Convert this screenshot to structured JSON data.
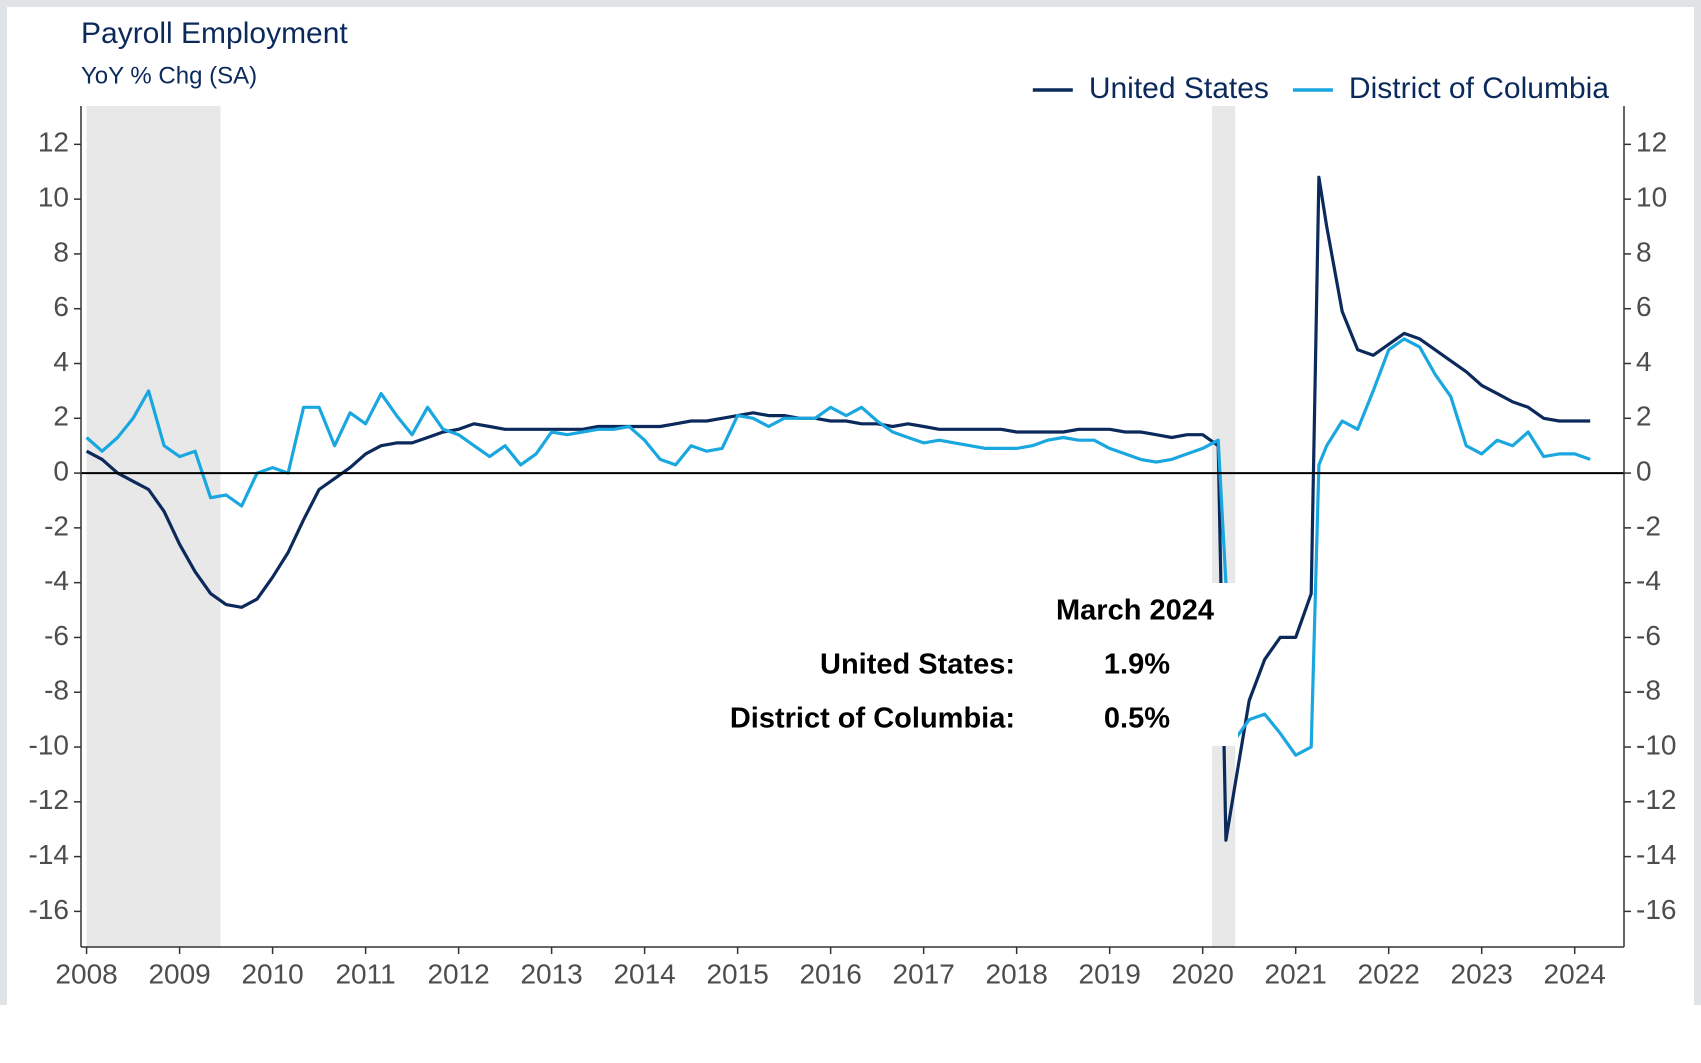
{
  "chart_data": {
    "type": "line",
    "title": "Payroll Employment",
    "subtitle": "YoY % Chg (SA)",
    "legend": "top-right",
    "x": [
      2008,
      2008.167,
      2008.333,
      2008.5,
      2008.667,
      2008.833,
      2009,
      2009.167,
      2009.333,
      2009.5,
      2009.667,
      2009.833,
      2010,
      2010.167,
      2010.333,
      2010.5,
      2010.667,
      2010.833,
      2011,
      2011.167,
      2011.333,
      2011.5,
      2011.667,
      2011.833,
      2012,
      2012.167,
      2012.333,
      2012.5,
      2012.667,
      2012.833,
      2013,
      2013.167,
      2013.333,
      2013.5,
      2013.667,
      2013.833,
      2014,
      2014.167,
      2014.333,
      2014.5,
      2014.667,
      2014.833,
      2015,
      2015.167,
      2015.333,
      2015.5,
      2015.667,
      2015.833,
      2016,
      2016.167,
      2016.333,
      2016.5,
      2016.667,
      2016.833,
      2017,
      2017.167,
      2017.333,
      2017.5,
      2017.667,
      2017.833,
      2018,
      2018.167,
      2018.333,
      2018.5,
      2018.667,
      2018.833,
      2019,
      2019.167,
      2019.333,
      2019.5,
      2019.667,
      2019.833,
      2020,
      2020.167,
      2020.25,
      2020.333,
      2020.5,
      2020.667,
      2020.833,
      2021,
      2021.167,
      2021.25,
      2021.333,
      2021.5,
      2021.667,
      2021.833,
      2022,
      2022.167,
      2022.333,
      2022.5,
      2022.667,
      2022.833,
      2023,
      2023.167,
      2023.333,
      2023.5,
      2023.667,
      2023.833,
      2024,
      2024.167
    ],
    "series": [
      {
        "name": "United States",
        "color": "#0b2a5b",
        "values": [
          0.8,
          0.5,
          0.0,
          -0.3,
          -0.6,
          -1.4,
          -2.6,
          -3.6,
          -4.4,
          -4.8,
          -4.9,
          -4.6,
          -3.8,
          -2.9,
          -1.7,
          -0.6,
          -0.2,
          0.2,
          0.7,
          1.0,
          1.1,
          1.1,
          1.3,
          1.5,
          1.6,
          1.8,
          1.7,
          1.6,
          1.6,
          1.6,
          1.6,
          1.6,
          1.6,
          1.7,
          1.7,
          1.7,
          1.7,
          1.7,
          1.8,
          1.9,
          1.9,
          2.0,
          2.1,
          2.2,
          2.1,
          2.1,
          2.0,
          2.0,
          1.9,
          1.9,
          1.8,
          1.8,
          1.7,
          1.8,
          1.7,
          1.6,
          1.6,
          1.6,
          1.6,
          1.6,
          1.5,
          1.5,
          1.5,
          1.5,
          1.6,
          1.6,
          1.6,
          1.5,
          1.5,
          1.4,
          1.3,
          1.4,
          1.4,
          1.0,
          -13.4,
          -11.7,
          -8.3,
          -6.8,
          -6.0,
          -6.0,
          -4.4,
          10.8,
          9.0,
          5.9,
          4.5,
          4.3,
          4.7,
          5.1,
          4.9,
          4.5,
          4.1,
          3.7,
          3.2,
          2.9,
          2.6,
          2.4,
          2.0,
          1.9,
          1.9,
          1.9
        ]
      },
      {
        "name": "District of Columbia",
        "color": "#1aa7e0",
        "values": [
          1.3,
          0.8,
          1.3,
          2.0,
          3.0,
          1.0,
          0.6,
          0.8,
          -0.9,
          -0.8,
          -1.2,
          0.0,
          0.2,
          0.0,
          2.4,
          2.4,
          1.0,
          2.2,
          1.8,
          2.9,
          2.1,
          1.4,
          2.4,
          1.6,
          1.4,
          1.0,
          0.6,
          1.0,
          0.3,
          0.7,
          1.5,
          1.4,
          1.5,
          1.6,
          1.6,
          1.7,
          1.2,
          0.5,
          0.3,
          1.0,
          0.8,
          0.9,
          2.1,
          2.0,
          1.7,
          2.0,
          2.0,
          2.0,
          2.4,
          2.1,
          2.4,
          1.9,
          1.5,
          1.3,
          1.1,
          1.2,
          1.1,
          1.0,
          0.9,
          0.9,
          0.9,
          1.0,
          1.2,
          1.3,
          1.2,
          1.2,
          0.9,
          0.7,
          0.5,
          0.4,
          0.5,
          0.7,
          0.9,
          1.2,
          -4.0,
          -9.8,
          -9.0,
          -8.8,
          -9.5,
          -10.3,
          -10.0,
          0.3,
          1.0,
          1.9,
          1.6,
          3.0,
          4.5,
          4.9,
          4.6,
          3.6,
          2.8,
          1.0,
          0.7,
          1.2,
          1.0,
          1.5,
          0.6,
          0.7,
          0.7,
          0.5
        ]
      }
    ],
    "shaded_periods": [
      [
        2008,
        2009.44
      ],
      [
        2020.1,
        2020.35
      ]
    ],
    "xlim": [
      2007.94,
      2024.53
    ],
    "xticks": [
      2008,
      2009,
      2010,
      2011,
      2012,
      2013,
      2014,
      2015,
      2016,
      2017,
      2018,
      2019,
      2020,
      2021,
      2022,
      2023,
      2024
    ],
    "ylim": [
      -17.3,
      13.4
    ],
    "yticks": [
      -16,
      -14,
      -12,
      -10,
      -8,
      -6,
      -4,
      -2,
      0,
      2,
      4,
      6,
      8,
      10,
      12
    ],
    "annotation": {
      "title": "March 2024",
      "rows": [
        {
          "label": "United States:",
          "text": "1.9%"
        },
        {
          "label": "District of Columbia:",
          "text": "0.5%"
        }
      ]
    }
  }
}
